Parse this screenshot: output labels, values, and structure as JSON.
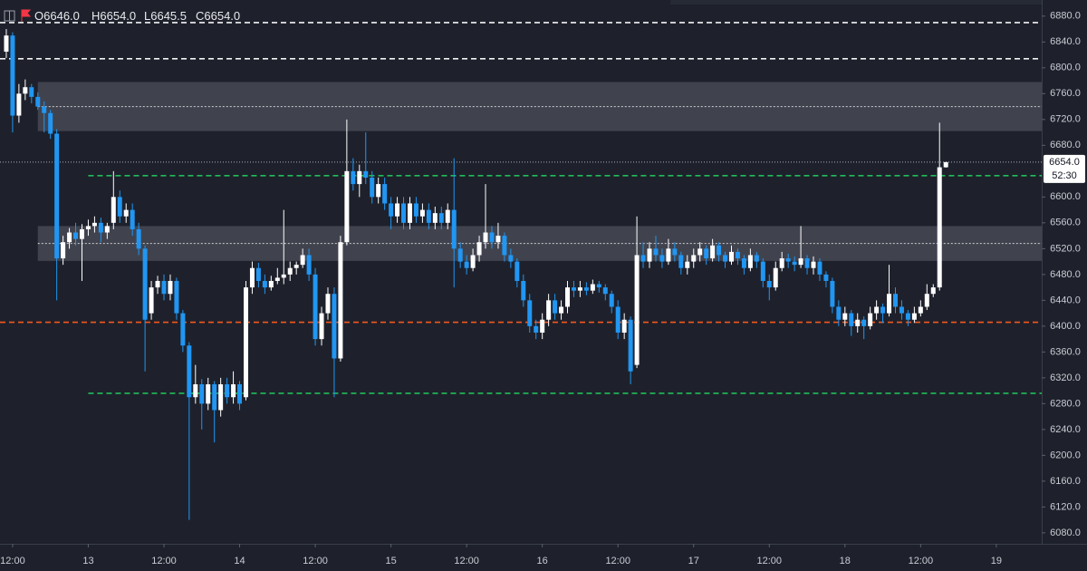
{
  "chart_data": {
    "type": "candlestick",
    "header": [
      {
        "label": "O",
        "value": "6646.0"
      },
      {
        "label": "H",
        "value": "6654.0"
      },
      {
        "label": "L",
        "value": "6645.5"
      },
      {
        "label": "C",
        "value": "6654.0"
      }
    ],
    "up_color": "#ffffff",
    "down_color": "#2196f3",
    "xlim": [
      -2,
      163.2
    ],
    "ylim": [
      6063,
      6905
    ],
    "xticks": [
      {
        "value": 0,
        "label": "12:00"
      },
      {
        "value": 12,
        "label": "13"
      },
      {
        "value": 24,
        "label": "12:00"
      },
      {
        "value": 36,
        "label": "14"
      },
      {
        "value": 48,
        "label": "12:00"
      },
      {
        "value": 60,
        "label": "15"
      },
      {
        "value": 72,
        "label": "12:00"
      },
      {
        "value": 84,
        "label": "16"
      },
      {
        "value": 96,
        "label": "12:00"
      },
      {
        "value": 108,
        "label": "17"
      },
      {
        "value": 120,
        "label": "12:00"
      },
      {
        "value": 132,
        "label": "18"
      },
      {
        "value": 144,
        "label": "12:00"
      },
      {
        "value": 156,
        "label": "19"
      }
    ],
    "yticks": [
      {
        "value": 6880,
        "label": "6880.0"
      },
      {
        "value": 6840,
        "label": "6840.0"
      },
      {
        "value": 6800,
        "label": "6800.0"
      },
      {
        "value": 6760,
        "label": "6760.0"
      },
      {
        "value": 6720,
        "label": "6720.0"
      },
      {
        "value": 6680,
        "label": "6680.0"
      },
      {
        "value": 6600,
        "label": "6600.0"
      },
      {
        "value": 6560,
        "label": "6560.0"
      },
      {
        "value": 6520,
        "label": "6520.0"
      },
      {
        "value": 6480,
        "label": "6480.0"
      },
      {
        "value": 6440,
        "label": "6440.0"
      },
      {
        "value": 6400,
        "label": "6400.0"
      },
      {
        "value": 6360,
        "label": "6360.0"
      },
      {
        "value": 6320,
        "label": "6320.0"
      },
      {
        "value": 6280,
        "label": "6280.0"
      },
      {
        "value": 6240,
        "label": "6240.0"
      },
      {
        "value": 6200,
        "label": "6200.0"
      },
      {
        "value": 6160,
        "label": "6160.0"
      },
      {
        "value": 6120,
        "label": "6120.0"
      },
      {
        "value": 6080,
        "label": "6080.0"
      }
    ],
    "last_price": {
      "value": 6654,
      "label": "6654.0"
    },
    "countdown": "52:30",
    "zones": [
      {
        "low": 6702,
        "high": 6778,
        "from": 4
      },
      {
        "low": 6501,
        "high": 6555,
        "from": 4
      }
    ],
    "levels": [
      {
        "value": 6870,
        "color": "#ffffff",
        "style": "dashed"
      },
      {
        "value": 6814,
        "color": "#ffffff",
        "style": "dashed"
      },
      {
        "value": 6740,
        "color": "#ffffff",
        "style": "dotted",
        "from": 4
      },
      {
        "value": 6528,
        "color": "#ffffff",
        "style": "dotted",
        "from": 4
      },
      {
        "value": 6633,
        "color": "#22c55e",
        "style": "dashed",
        "from": 12
      },
      {
        "value": 6296,
        "color": "#22c55e",
        "style": "dashed",
        "from": 12
      },
      {
        "value": 6406,
        "color": "#ff5a1f",
        "style": "dashed"
      }
    ],
    "x": [
      -1,
      0,
      1,
      2,
      3,
      4,
      5,
      6,
      7,
      8,
      9,
      10,
      11,
      12,
      13,
      14,
      15,
      16,
      17,
      18,
      19,
      20,
      21,
      22,
      23,
      24,
      25,
      26,
      27,
      28,
      29,
      30,
      31,
      32,
      33,
      34,
      35,
      36,
      37,
      38,
      39,
      40,
      41,
      42,
      43,
      44,
      45,
      46,
      47,
      48,
      49,
      50,
      51,
      52,
      53,
      54,
      55,
      56,
      57,
      58,
      59,
      60,
      61,
      62,
      63,
      64,
      65,
      66,
      67,
      68,
      69,
      70,
      71,
      72,
      73,
      74,
      75,
      76,
      77,
      78,
      79,
      80,
      81,
      82,
      83,
      84,
      85,
      86,
      87,
      88,
      89,
      90,
      91,
      92,
      93,
      94,
      95,
      96,
      97,
      98,
      99,
      100,
      101,
      102,
      103,
      104,
      105,
      106,
      107,
      108,
      109,
      110,
      111,
      112,
      113,
      114,
      115,
      116,
      117,
      118,
      119,
      120,
      121,
      122,
      123,
      124,
      125,
      126,
      127,
      128,
      129,
      130,
      131,
      132,
      133,
      134,
      135,
      136,
      137,
      138,
      139,
      140,
      141,
      142,
      143,
      144,
      145,
      146,
      147,
      148
    ],
    "candles": [
      [
        6825,
        6860,
        6815,
        6850
      ],
      [
        6850,
        6855,
        6700,
        6726
      ],
      [
        6726,
        6775,
        6715,
        6760
      ],
      [
        6760,
        6782,
        6750,
        6770
      ],
      [
        6770,
        6775,
        6745,
        6755
      ],
      [
        6755,
        6762,
        6735,
        6740
      ],
      [
        6740,
        6748,
        6700,
        6730
      ],
      [
        6730,
        6735,
        6690,
        6698
      ],
      [
        6698,
        6705,
        6440,
        6505
      ],
      [
        6505,
        6540,
        6495,
        6530
      ],
      [
        6530,
        6552,
        6520,
        6545
      ],
      [
        6545,
        6560,
        6525,
        6535
      ],
      [
        6535,
        6558,
        6470,
        6550
      ],
      [
        6550,
        6565,
        6540,
        6555
      ],
      [
        6555,
        6570,
        6545,
        6560
      ],
      [
        6560,
        6568,
        6530,
        6545
      ],
      [
        6545,
        6560,
        6535,
        6555
      ],
      [
        6560,
        6640,
        6550,
        6600
      ],
      [
        6600,
        6610,
        6560,
        6570
      ],
      [
        6570,
        6590,
        6560,
        6580
      ],
      [
        6580,
        6590,
        6540,
        6550
      ],
      [
        6550,
        6560,
        6510,
        6520
      ],
      [
        6520,
        6525,
        6330,
        6410
      ],
      [
        6420,
        6470,
        6410,
        6460
      ],
      [
        6460,
        6478,
        6450,
        6470
      ],
      [
        6470,
        6480,
        6440,
        6450
      ],
      [
        6450,
        6480,
        6440,
        6470
      ],
      [
        6470,
        6475,
        6410,
        6420
      ],
      [
        6420,
        6425,
        6360,
        6370
      ],
      [
        6370,
        6375,
        6100,
        6290
      ],
      [
        6290,
        6340,
        6280,
        6310
      ],
      [
        6310,
        6318,
        6240,
        6280
      ],
      [
        6280,
        6320,
        6270,
        6310
      ],
      [
        6310,
        6315,
        6220,
        6270
      ],
      [
        6270,
        6320,
        6260,
        6310
      ],
      [
        6310,
        6320,
        6280,
        6290
      ],
      [
        6290,
        6330,
        6280,
        6310
      ],
      [
        6310,
        6315,
        6270,
        6280
      ],
      [
        6290,
        6470,
        6285,
        6460
      ],
      [
        6460,
        6500,
        6450,
        6490
      ],
      [
        6490,
        6498,
        6460,
        6470
      ],
      [
        6470,
        6480,
        6450,
        6460
      ],
      [
        6460,
        6478,
        6455,
        6470
      ],
      [
        6470,
        6490,
        6465,
        6475
      ],
      [
        6475,
        6580,
        6465,
        6480
      ],
      [
        6480,
        6500,
        6470,
        6490
      ],
      [
        6490,
        6500,
        6480,
        6495
      ],
      [
        6495,
        6520,
        6490,
        6510
      ],
      [
        6510,
        6520,
        6470,
        6480
      ],
      [
        6480,
        6490,
        6370,
        6380
      ],
      [
        6380,
        6430,
        6370,
        6420
      ],
      [
        6420,
        6460,
        6410,
        6450
      ],
      [
        6450,
        6460,
        6290,
        6350
      ],
      [
        6350,
        6540,
        6345,
        6530
      ],
      [
        6530,
        6720,
        6525,
        6640
      ],
      [
        6640,
        6660,
        6610,
        6620
      ],
      [
        6620,
        6650,
        6600,
        6640
      ],
      [
        6640,
        6700,
        6620,
        6630
      ],
      [
        6630,
        6640,
        6590,
        6600
      ],
      [
        6600,
        6630,
        6590,
        6620
      ],
      [
        6620,
        6630,
        6580,
        6590
      ],
      [
        6590,
        6600,
        6550,
        6570
      ],
      [
        6570,
        6600,
        6560,
        6590
      ],
      [
        6590,
        6600,
        6550,
        6560
      ],
      [
        6560,
        6600,
        6550,
        6590
      ],
      [
        6590,
        6600,
        6560,
        6570
      ],
      [
        6570,
        6590,
        6560,
        6580
      ],
      [
        6580,
        6590,
        6550,
        6560
      ],
      [
        6560,
        6585,
        6550,
        6575
      ],
      [
        6575,
        6585,
        6550,
        6560
      ],
      [
        6560,
        6590,
        6550,
        6580
      ],
      [
        6580,
        6660,
        6460,
        6520
      ],
      [
        6520,
        6530,
        6490,
        6500
      ],
      [
        6500,
        6510,
        6480,
        6490
      ],
      [
        6490,
        6520,
        6485,
        6510
      ],
      [
        6510,
        6540,
        6500,
        6530
      ],
      [
        6530,
        6620,
        6520,
        6545
      ],
      [
        6545,
        6555,
        6520,
        6530
      ],
      [
        6530,
        6560,
        6520,
        6540
      ],
      [
        6540,
        6545,
        6500,
        6510
      ],
      [
        6510,
        6520,
        6490,
        6500
      ],
      [
        6500,
        6505,
        6460,
        6470
      ],
      [
        6470,
        6480,
        6430,
        6440
      ],
      [
        6440,
        6450,
        6390,
        6400
      ],
      [
        6400,
        6410,
        6380,
        6390
      ],
      [
        6390,
        6420,
        6380,
        6410
      ],
      [
        6410,
        6450,
        6400,
        6440
      ],
      [
        6440,
        6450,
        6410,
        6420
      ],
      [
        6420,
        6440,
        6410,
        6430
      ],
      [
        6430,
        6470,
        6420,
        6460
      ],
      [
        6460,
        6470,
        6445,
        6455
      ],
      [
        6455,
        6470,
        6445,
        6460
      ],
      [
        6460,
        6468,
        6448,
        6455
      ],
      [
        6455,
        6472,
        6450,
        6465
      ],
      [
        6465,
        6470,
        6452,
        6460
      ],
      [
        6460,
        6465,
        6440,
        6450
      ],
      [
        6450,
        6455,
        6420,
        6430
      ],
      [
        6430,
        6440,
        6380,
        6390
      ],
      [
        6390,
        6420,
        6380,
        6410
      ],
      [
        6410,
        6415,
        6310,
        6330
      ],
      [
        6340,
        6570,
        6335,
        6510
      ],
      [
        6510,
        6530,
        6490,
        6500
      ],
      [
        6500,
        6530,
        6490,
        6520
      ],
      [
        6520,
        6540,
        6500,
        6510
      ],
      [
        6510,
        6520,
        6490,
        6500
      ],
      [
        6500,
        6535,
        6495,
        6520
      ],
      [
        6520,
        6530,
        6500,
        6510
      ],
      [
        6510,
        6515,
        6480,
        6490
      ],
      [
        6490,
        6510,
        6480,
        6500
      ],
      [
        6500,
        6520,
        6490,
        6510
      ],
      [
        6510,
        6530,
        6500,
        6520
      ],
      [
        6520,
        6525,
        6495,
        6505
      ],
      [
        6505,
        6535,
        6500,
        6525
      ],
      [
        6525,
        6530,
        6500,
        6510
      ],
      [
        6510,
        6515,
        6490,
        6500
      ],
      [
        6500,
        6525,
        6495,
        6515
      ],
      [
        6515,
        6520,
        6495,
        6505
      ],
      [
        6505,
        6510,
        6480,
        6490
      ],
      [
        6490,
        6520,
        6485,
        6510
      ],
      [
        6510,
        6515,
        6490,
        6500
      ],
      [
        6500,
        6505,
        6460,
        6470
      ],
      [
        6470,
        6480,
        6440,
        6460
      ],
      [
        6460,
        6500,
        6455,
        6490
      ],
      [
        6490,
        6515,
        6485,
        6505
      ],
      [
        6505,
        6512,
        6490,
        6500
      ],
      [
        6500,
        6508,
        6485,
        6495
      ],
      [
        6495,
        6555,
        6490,
        6505
      ],
      [
        6505,
        6510,
        6480,
        6490
      ],
      [
        6490,
        6508,
        6480,
        6500
      ],
      [
        6500,
        6505,
        6470,
        6480
      ],
      [
        6480,
        6485,
        6460,
        6470
      ],
      [
        6470,
        6475,
        6420,
        6430
      ],
      [
        6430,
        6440,
        6400,
        6410
      ],
      [
        6410,
        6430,
        6400,
        6420
      ],
      [
        6420,
        6425,
        6385,
        6400
      ],
      [
        6400,
        6420,
        6390,
        6410
      ],
      [
        6410,
        6415,
        6380,
        6400
      ],
      [
        6400,
        6430,
        6395,
        6420
      ],
      [
        6420,
        6440,
        6410,
        6430
      ],
      [
        6430,
        6435,
        6405,
        6420
      ],
      [
        6420,
        6495,
        6415,
        6450
      ],
      [
        6450,
        6460,
        6420,
        6430
      ],
      [
        6430,
        6440,
        6410,
        6420
      ],
      [
        6420,
        6425,
        6400,
        6410
      ],
      [
        6410,
        6430,
        6405,
        6420
      ],
      [
        6420,
        6440,
        6415,
        6430
      ],
      [
        6430,
        6465,
        6425,
        6450
      ],
      [
        6450,
        6465,
        6445,
        6460
      ],
      [
        6460,
        6715,
        6455,
        6646
      ],
      [
        6646,
        6654,
        6645.5,
        6654
      ]
    ]
  }
}
